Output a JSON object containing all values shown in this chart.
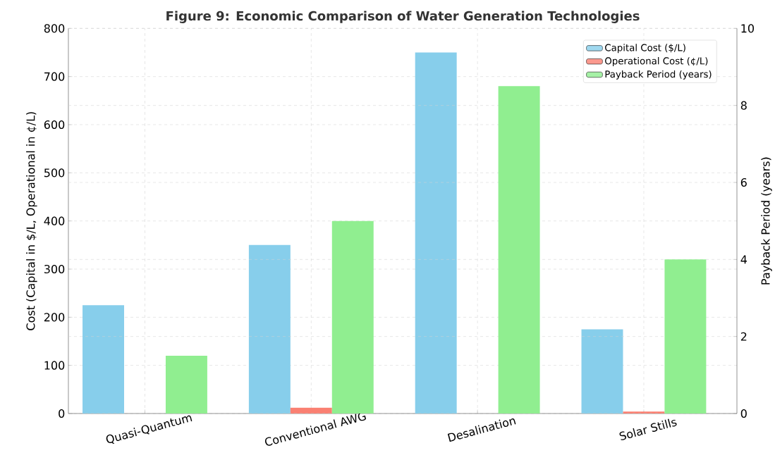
{
  "chart_data": {
    "type": "bar",
    "title": "Figure 9: Economic Comparison of Water Generation Technologies",
    "ylabel": "Cost (Capital in $/L, Operational in ¢/L)",
    "y2label": "Payback Period (years)",
    "categories": [
      "Quasi-Quantum",
      "Conventional AWG",
      "Desalination",
      "Solar Stills"
    ],
    "series": [
      {
        "name": "Capital Cost ($/L)",
        "color": "#87ceeb",
        "values": [
          225,
          350,
          750,
          175
        ]
      },
      {
        "name": "Operational Cost (¢/L)",
        "color": "#fa8072",
        "values": [
          0,
          12,
          0,
          4
        ]
      },
      {
        "name": "Payback Period (years)",
        "color": "#90ee90",
        "values": [
          1.5,
          5,
          8.5,
          4
        ],
        "axis": "y2"
      }
    ],
    "ylim": [
      0,
      800
    ],
    "yticks": [
      0,
      100,
      200,
      300,
      400,
      500,
      600,
      700,
      800
    ],
    "y2lim": [
      0,
      10
    ],
    "y2ticks": [
      0,
      2,
      4,
      6,
      8,
      10
    ],
    "grid": true,
    "legend": "top right"
  }
}
